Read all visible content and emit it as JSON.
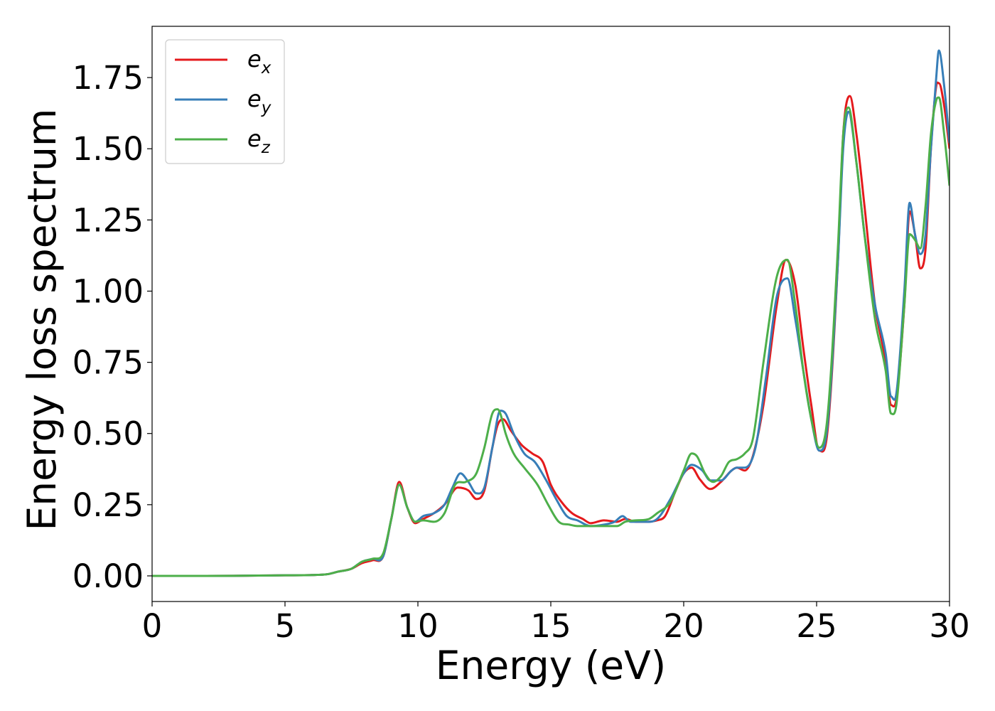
{
  "chart_data": {
    "type": "line",
    "title": "",
    "xlabel": "Energy (eV)",
    "ylabel": "Energy loss spectrum",
    "xlim": [
      0,
      30
    ],
    "ylim": [
      -0.09,
      1.93
    ],
    "xticks": [
      0,
      5,
      10,
      15,
      20,
      25,
      30
    ],
    "yticks": [
      0.0,
      0.25,
      0.5,
      0.75,
      1.0,
      1.25,
      1.5,
      1.75
    ],
    "xtick_labels": [
      "0",
      "5",
      "10",
      "15",
      "20",
      "25",
      "30"
    ],
    "ytick_labels": [
      "0.00",
      "0.25",
      "0.50",
      "0.75",
      "1.00",
      "1.25",
      "1.50",
      "1.75"
    ],
    "grid": false,
    "legend_position": "top-left",
    "series": [
      {
        "name": "e_x",
        "label_base": "e",
        "label_sub": "x",
        "color": "#e41a1c",
        "x": [
          0,
          2,
          4,
          5,
          6,
          6.6,
          7,
          7.5,
          7.9,
          8.3,
          8.7,
          9.0,
          9.3,
          9.6,
          9.9,
          10.2,
          10.6,
          11.0,
          11.5,
          11.9,
          12.2,
          12.5,
          12.8,
          13.0,
          13.2,
          13.5,
          13.9,
          14.3,
          14.7,
          15.0,
          15.4,
          15.8,
          16.2,
          16.5,
          17.0,
          17.5,
          17.8,
          18.2,
          18.6,
          19.0,
          19.3,
          19.7,
          20.0,
          20.3,
          20.6,
          21.0,
          21.4,
          21.8,
          22.0,
          22.3,
          22.6,
          23.0,
          23.5,
          23.85,
          24.2,
          24.5,
          24.8,
          25.1,
          25.4,
          25.8,
          26.0,
          26.25,
          26.5,
          26.8,
          27.2,
          27.6,
          27.8,
          28.0,
          28.3,
          28.5,
          28.7,
          28.9,
          29.1,
          29.3,
          29.5,
          29.6,
          29.8,
          30.0
        ],
        "y": [
          0.0,
          0.0,
          0.001,
          0.002,
          0.003,
          0.006,
          0.015,
          0.025,
          0.045,
          0.055,
          0.07,
          0.2,
          0.33,
          0.24,
          0.185,
          0.2,
          0.22,
          0.25,
          0.31,
          0.3,
          0.27,
          0.3,
          0.45,
          0.53,
          0.55,
          0.51,
          0.46,
          0.43,
          0.4,
          0.32,
          0.26,
          0.22,
          0.2,
          0.185,
          0.195,
          0.19,
          0.2,
          0.19,
          0.19,
          0.195,
          0.21,
          0.3,
          0.36,
          0.38,
          0.34,
          0.305,
          0.33,
          0.37,
          0.38,
          0.37,
          0.42,
          0.6,
          0.95,
          1.11,
          1.02,
          0.8,
          0.6,
          0.44,
          0.5,
          1.1,
          1.55,
          1.685,
          1.55,
          1.3,
          0.95,
          0.75,
          0.6,
          0.62,
          0.95,
          1.28,
          1.2,
          1.08,
          1.15,
          1.5,
          1.72,
          1.73,
          1.65,
          1.5
        ]
      },
      {
        "name": "e_y",
        "label_base": "e",
        "label_sub": "y",
        "color": "#377eb8",
        "x": [
          0,
          2,
          4,
          5,
          6,
          6.6,
          7,
          7.5,
          7.9,
          8.3,
          8.7,
          9.0,
          9.3,
          9.6,
          9.9,
          10.2,
          10.6,
          11.0,
          11.3,
          11.6,
          11.9,
          12.2,
          12.5,
          12.8,
          13.1,
          13.3,
          13.6,
          14.0,
          14.4,
          14.8,
          15.2,
          15.6,
          16.0,
          16.5,
          17.0,
          17.4,
          17.7,
          18.0,
          18.5,
          19.0,
          19.5,
          20.0,
          20.3,
          20.7,
          21.0,
          21.4,
          21.8,
          22.0,
          22.3,
          22.7,
          23.1,
          23.5,
          23.9,
          24.2,
          24.5,
          24.8,
          25.1,
          25.4,
          25.8,
          26.0,
          26.2,
          26.5,
          26.8,
          27.2,
          27.6,
          27.8,
          28.0,
          28.3,
          28.5,
          28.7,
          28.9,
          29.1,
          29.3,
          29.5,
          29.6,
          29.8,
          30.0
        ],
        "y": [
          0.0,
          0.0,
          0.001,
          0.002,
          0.003,
          0.006,
          0.015,
          0.025,
          0.05,
          0.06,
          0.07,
          0.2,
          0.32,
          0.24,
          0.19,
          0.21,
          0.22,
          0.25,
          0.31,
          0.36,
          0.33,
          0.29,
          0.31,
          0.45,
          0.58,
          0.57,
          0.5,
          0.43,
          0.4,
          0.34,
          0.27,
          0.21,
          0.195,
          0.175,
          0.18,
          0.19,
          0.21,
          0.19,
          0.19,
          0.2,
          0.27,
          0.36,
          0.39,
          0.37,
          0.335,
          0.335,
          0.37,
          0.38,
          0.38,
          0.45,
          0.7,
          0.98,
          1.045,
          0.9,
          0.72,
          0.55,
          0.44,
          0.52,
          1.1,
          1.5,
          1.63,
          1.45,
          1.2,
          0.95,
          0.78,
          0.63,
          0.64,
          1.0,
          1.31,
          1.2,
          1.13,
          1.2,
          1.5,
          1.75,
          1.845,
          1.72,
          1.52
        ]
      },
      {
        "name": "e_z",
        "label_base": "e",
        "label_sub": "z",
        "color": "#4daf4a",
        "x": [
          0,
          2,
          4,
          5,
          6,
          6.6,
          7,
          7.5,
          7.9,
          8.3,
          8.7,
          9.0,
          9.3,
          9.6,
          9.9,
          10.2,
          10.6,
          11.0,
          11.4,
          11.8,
          12.2,
          12.5,
          12.8,
          13.0,
          13.1,
          13.3,
          13.6,
          14.0,
          14.5,
          14.9,
          15.3,
          15.7,
          16.0,
          16.5,
          17.0,
          17.5,
          17.8,
          18.2,
          18.7,
          19.0,
          19.5,
          20.0,
          20.3,
          20.5,
          20.8,
          21.1,
          21.4,
          21.7,
          22.0,
          22.3,
          22.6,
          23.0,
          23.5,
          23.9,
          24.2,
          24.5,
          24.8,
          25.1,
          25.4,
          25.8,
          26.0,
          26.2,
          26.5,
          26.8,
          27.2,
          27.6,
          27.8,
          28.0,
          28.3,
          28.5,
          28.7,
          28.9,
          29.1,
          29.3,
          29.5,
          29.6,
          29.8,
          30.0
        ],
        "y": [
          0.0,
          0.0,
          0.001,
          0.002,
          0.003,
          0.006,
          0.015,
          0.025,
          0.05,
          0.06,
          0.08,
          0.2,
          0.32,
          0.24,
          0.19,
          0.195,
          0.19,
          0.22,
          0.32,
          0.33,
          0.36,
          0.45,
          0.57,
          0.585,
          0.57,
          0.5,
          0.43,
          0.38,
          0.32,
          0.25,
          0.19,
          0.18,
          0.175,
          0.175,
          0.175,
          0.175,
          0.19,
          0.195,
          0.2,
          0.22,
          0.26,
          0.37,
          0.43,
          0.42,
          0.36,
          0.33,
          0.35,
          0.4,
          0.41,
          0.43,
          0.48,
          0.75,
          1.05,
          1.11,
          0.95,
          0.72,
          0.55,
          0.45,
          0.55,
          1.15,
          1.55,
          1.645,
          1.45,
          1.2,
          0.9,
          0.72,
          0.57,
          0.6,
          0.95,
          1.2,
          1.18,
          1.15,
          1.3,
          1.55,
          1.67,
          1.68,
          1.55,
          1.37
        ]
      }
    ]
  }
}
